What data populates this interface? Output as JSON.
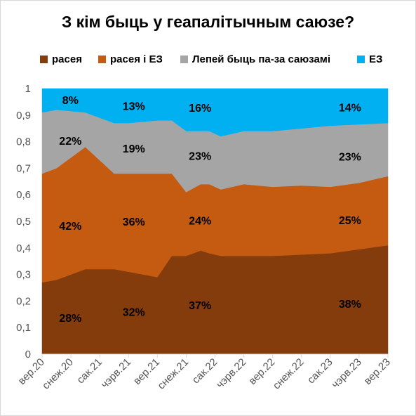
{
  "chart_data": {
    "type": "area",
    "stacked": true,
    "title": "З кім быць у геапалітычным саюзе?",
    "ylim": [
      0,
      1
    ],
    "yticks": [
      "0",
      "0,1",
      "0,2",
      "0,3",
      "0,4",
      "0,5",
      "0,6",
      "0,7",
      "0,8",
      "0,9",
      "1"
    ],
    "xlabels": [
      "вер.20",
      "снеж.20",
      "сак.21",
      "чэрв.21",
      "вер.21",
      "снеж.21",
      "сак.22",
      "чэрв.22",
      "вер.22",
      "снеж.22",
      "сак.23",
      "чэрв.23",
      "вер.23"
    ],
    "x": [
      0,
      0.5,
      1.5,
      2.5,
      3.0,
      4.0,
      4.5,
      5.0,
      5.5,
      5.8,
      6.2,
      7.0,
      8.0,
      9.0,
      10.0,
      11.0,
      12.0
    ],
    "series": [
      {
        "name": "расея",
        "color": "#843C0C",
        "values": [
          0.27,
          0.28,
          0.32,
          0.32,
          0.31,
          0.29,
          0.37,
          0.37,
          0.39,
          0.38,
          0.37,
          0.37,
          0.37,
          0.375,
          0.38,
          0.395,
          0.41
        ]
      },
      {
        "name": "расея і ЕЗ",
        "color": "#C55A11",
        "values": [
          0.41,
          0.42,
          0.46,
          0.36,
          0.37,
          0.39,
          0.31,
          0.24,
          0.25,
          0.26,
          0.25,
          0.27,
          0.26,
          0.26,
          0.25,
          0.25,
          0.26
        ]
      },
      {
        "name": "Лепей быць па-за саюзамі",
        "color": "#A5A5A5",
        "values": [
          0.23,
          0.22,
          0.13,
          0.19,
          0.19,
          0.2,
          0.2,
          0.23,
          0.2,
          0.2,
          0.2,
          0.2,
          0.21,
          0.215,
          0.23,
          0.22,
          0.2
        ]
      },
      {
        "name": "ЕЗ",
        "color": "#00B0F0",
        "values": [
          0.09,
          0.08,
          0.09,
          0.13,
          0.13,
          0.12,
          0.12,
          0.16,
          0.16,
          0.16,
          0.18,
          0.16,
          0.16,
          0.15,
          0.14,
          0.135,
          0.13
        ]
      }
    ],
    "data_labels": [
      {
        "text": "28%",
        "series": 0,
        "x": 0.3
      },
      {
        "text": "42%",
        "series": 1,
        "x": 0.3
      },
      {
        "text": "22%",
        "series": 2,
        "x": 0.3
      },
      {
        "text": "8%",
        "series": 3,
        "x": 0.3
      },
      {
        "text": "32%",
        "series": 0,
        "x": 2.5
      },
      {
        "text": "36%",
        "series": 1,
        "x": 2.5
      },
      {
        "text": "19%",
        "series": 2,
        "x": 2.5
      },
      {
        "text": "13%",
        "series": 3,
        "x": 2.5
      },
      {
        "text": "37%",
        "series": 0,
        "x": 4.8
      },
      {
        "text": "24%",
        "series": 1,
        "x": 4.8
      },
      {
        "text": "23%",
        "series": 2,
        "x": 4.8
      },
      {
        "text": "16%",
        "series": 3,
        "x": 4.8
      },
      {
        "text": "38%",
        "series": 0,
        "x": 10.0
      },
      {
        "text": "25%",
        "series": 1,
        "x": 10.0
      },
      {
        "text": "23%",
        "series": 2,
        "x": 10.0
      },
      {
        "text": "14%",
        "series": 3,
        "x": 10.0
      }
    ],
    "legend_position": "top"
  }
}
